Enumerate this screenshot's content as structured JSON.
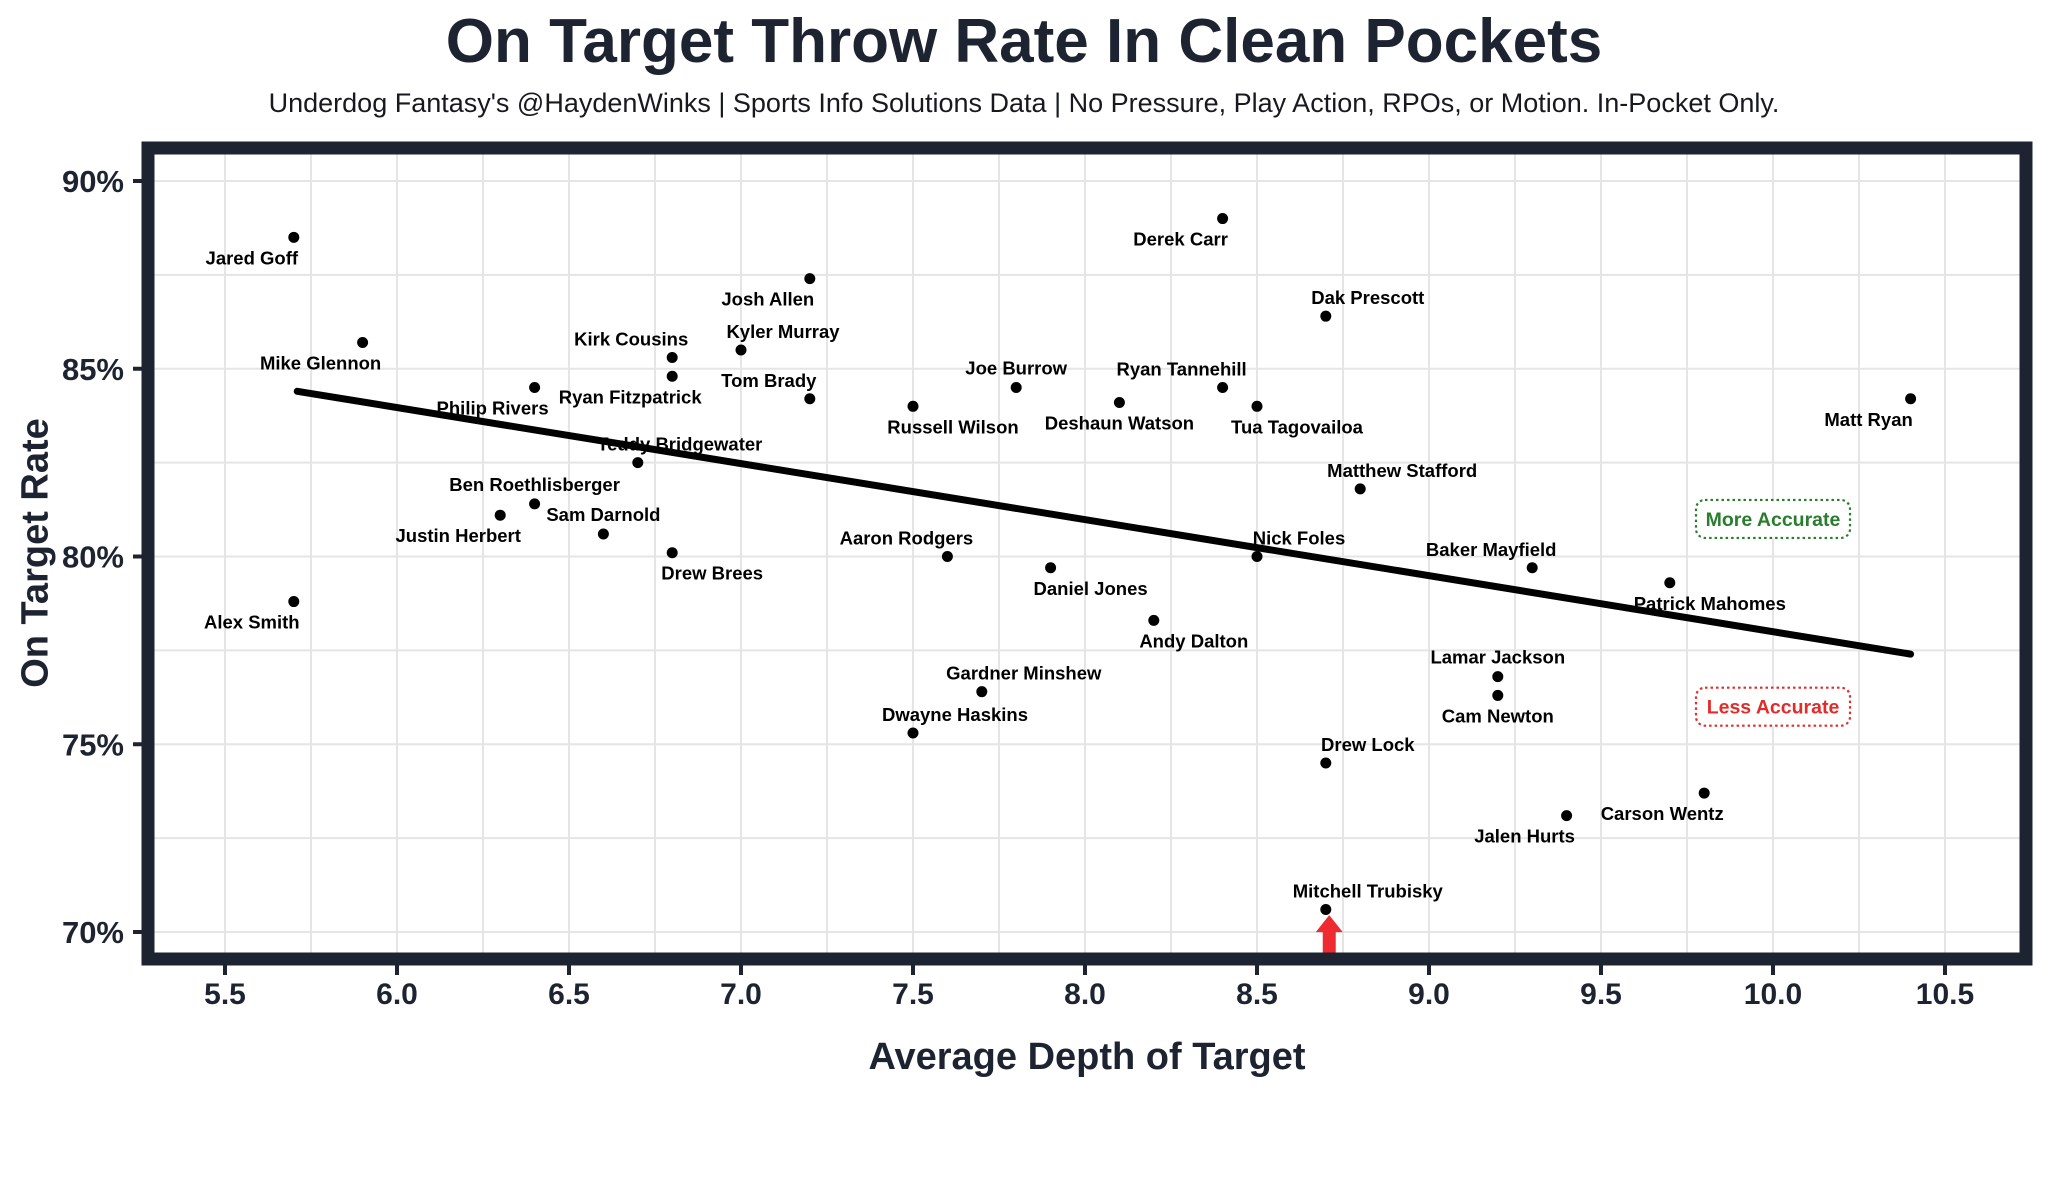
{
  "header": {
    "title": "On Target Throw Rate In Clean Pockets",
    "subtitle": "Underdog Fantasy's @HaydenWinks | Sports Info Solutions Data | No Pressure, Play Action, RPOs, or Motion. In-Pocket Only."
  },
  "chart_data": {
    "type": "scatter",
    "title": "On Target Throw Rate In Clean Pockets",
    "xlabel": "Average Depth of Target",
    "ylabel": "On Target Rate",
    "xlim": [
      5.28,
      10.73
    ],
    "ylim": [
      69.3,
      90.9
    ],
    "x_ticks": [
      5.5,
      6.0,
      6.5,
      7.0,
      7.5,
      8.0,
      8.5,
      9.0,
      9.5,
      10.0,
      10.5
    ],
    "y_ticks": [
      70,
      75,
      80,
      85,
      90
    ],
    "x_minor_step": 0.25,
    "y_minor_step": 2.5,
    "grid": "on",
    "legend_position": "none",
    "points": [
      {
        "name": "Jared Goff",
        "x": 5.7,
        "y": 88.5,
        "label_pos": "below-left"
      },
      {
        "name": "Mike Glennon",
        "x": 5.9,
        "y": 85.7,
        "label_pos": "below-left"
      },
      {
        "name": "Alex Smith",
        "x": 5.7,
        "y": 78.8,
        "label_pos": "below-left"
      },
      {
        "name": "Philip Rivers",
        "x": 6.4,
        "y": 84.5,
        "label_pos": "below-left"
      },
      {
        "name": "Kirk Cousins",
        "x": 6.8,
        "y": 85.3,
        "label_pos": "above-left"
      },
      {
        "name": "Ryan Fitzpatrick",
        "x": 6.8,
        "y": 84.8,
        "label_pos": "below-left"
      },
      {
        "name": "Teddy Bridgewater",
        "x": 6.7,
        "y": 82.5,
        "label_pos": "above-right"
      },
      {
        "name": "Ben Roethlisberger",
        "x": 6.4,
        "y": 81.4,
        "label_pos": "above"
      },
      {
        "name": "Sam Darnold",
        "x": 6.6,
        "y": 80.6,
        "label_pos": "above"
      },
      {
        "name": "Justin Herbert",
        "x": 6.3,
        "y": 81.1,
        "label_pos": "below-left"
      },
      {
        "name": "Drew Brees",
        "x": 6.8,
        "y": 80.1,
        "label_pos": "below-right"
      },
      {
        "name": "Josh Allen",
        "x": 7.2,
        "y": 87.4,
        "label_pos": "below-left"
      },
      {
        "name": "Kyler Murray",
        "x": 7.0,
        "y": 85.5,
        "label_pos": "above-right"
      },
      {
        "name": "Tom Brady",
        "x": 7.2,
        "y": 84.2,
        "label_pos": "above-left"
      },
      {
        "name": "Russell Wilson",
        "x": 7.5,
        "y": 84.0,
        "label_pos": "below-right"
      },
      {
        "name": "Joe Burrow",
        "x": 7.8,
        "y": 84.5,
        "label_pos": "above"
      },
      {
        "name": "Deshaun Watson",
        "x": 8.1,
        "y": 84.1,
        "label_pos": "below"
      },
      {
        "name": "Ryan Tannehill",
        "x": 8.4,
        "y": 84.5,
        "label_pos": "above-left"
      },
      {
        "name": "Tua Tagovailoa",
        "x": 8.5,
        "y": 84.0,
        "label_pos": "below-right"
      },
      {
        "name": "Derek Carr",
        "x": 8.4,
        "y": 89.0,
        "label_pos": "below-left"
      },
      {
        "name": "Dak Prescott",
        "x": 8.7,
        "y": 86.4,
        "label_pos": "above-right"
      },
      {
        "name": "Matthew Stafford",
        "x": 8.8,
        "y": 81.8,
        "label_pos": "above-right"
      },
      {
        "name": "Nick Foles",
        "x": 8.5,
        "y": 80.0,
        "label_pos": "above-right"
      },
      {
        "name": "Aaron Rodgers",
        "x": 7.6,
        "y": 80.0,
        "label_pos": "above-left"
      },
      {
        "name": "Daniel Jones",
        "x": 7.9,
        "y": 79.7,
        "label_pos": "below-right"
      },
      {
        "name": "Andy Dalton",
        "x": 8.2,
        "y": 78.3,
        "label_pos": "below-right"
      },
      {
        "name": "Gardner Minshew",
        "x": 7.7,
        "y": 76.4,
        "label_pos": "above-right"
      },
      {
        "name": "Dwayne Haskins",
        "x": 7.5,
        "y": 75.3,
        "label_pos": "above-right"
      },
      {
        "name": "Drew Lock",
        "x": 8.7,
        "y": 74.5,
        "label_pos": "above-right"
      },
      {
        "name": "Baker Mayfield",
        "x": 9.3,
        "y": 79.7,
        "label_pos": "above-left"
      },
      {
        "name": "Lamar Jackson",
        "x": 9.2,
        "y": 76.8,
        "label_pos": "above"
      },
      {
        "name": "Cam Newton",
        "x": 9.2,
        "y": 76.3,
        "label_pos": "below"
      },
      {
        "name": "Patrick Mahomes",
        "x": 9.7,
        "y": 79.3,
        "label_pos": "below-right"
      },
      {
        "name": "Jalen Hurts",
        "x": 9.4,
        "y": 73.1,
        "label_pos": "below-left"
      },
      {
        "name": "Carson Wentz",
        "x": 9.8,
        "y": 73.7,
        "label_pos": "below-left"
      },
      {
        "name": "Mitchell Trubisky",
        "x": 8.7,
        "y": 70.6,
        "label_pos": "above-right"
      },
      {
        "name": "Matt Ryan",
        "x": 10.4,
        "y": 84.2,
        "label_pos": "below-left"
      }
    ],
    "trendline": {
      "x1": 5.71,
      "y1": 84.4,
      "x2": 10.4,
      "y2": 77.4
    },
    "annotations": [
      {
        "id": "more-accurate",
        "text": "More Accurate",
        "x": 10.0,
        "y": 81.0,
        "color": "#2a7d2e"
      },
      {
        "id": "less-accurate",
        "text": "Less Accurate",
        "x": 10.0,
        "y": 76.0,
        "color": "#e22b2b"
      }
    ],
    "arrow": {
      "x": 8.71,
      "tip_y": 70.45,
      "base_y": 69.42,
      "color": "#ee2b30",
      "direction": "up"
    },
    "colors": {
      "axis": "#1d2330",
      "grid": "#e5e5e5",
      "point": "#000000",
      "trend": "#000000",
      "label": "#000000",
      "more_accurate": "#2a7d2e",
      "less_accurate": "#e22b2b",
      "arrow": "#ee2b30"
    }
  }
}
